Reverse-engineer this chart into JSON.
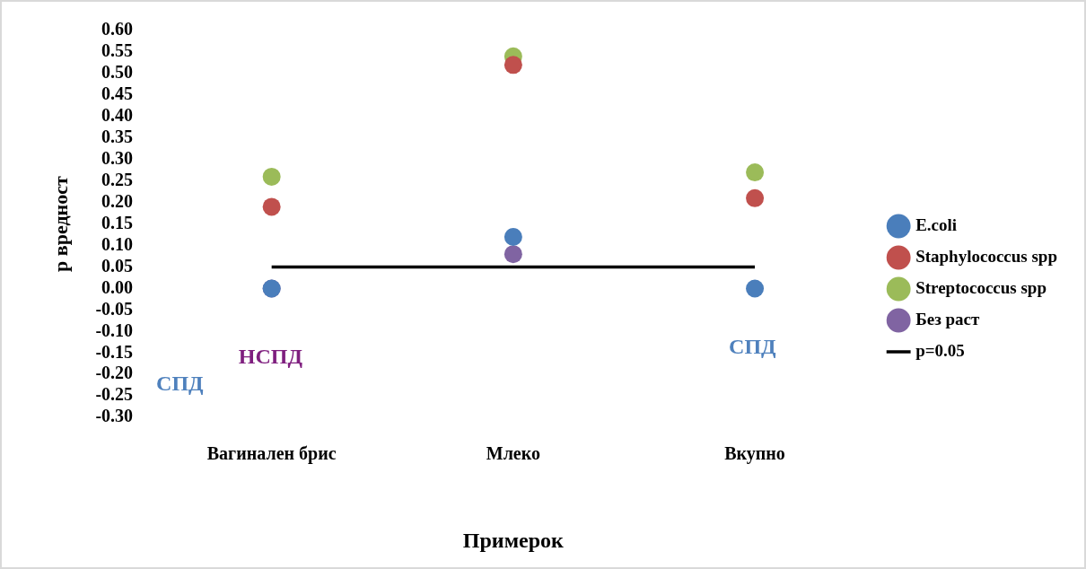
{
  "chart_data": {
    "type": "scatter",
    "xlabel": "Примерок",
    "ylabel": "p вредност",
    "categories": [
      "Вагинален брис",
      "Млеко",
      "Вкупно"
    ],
    "series": [
      {
        "name": "E.coli",
        "color": "#4a7ebb",
        "values": [
          0,
          0.12,
          0
        ]
      },
      {
        "name": "Staphylococcus spp",
        "color": "#c0504d",
        "values": [
          0.19,
          0.52,
          0.21
        ]
      },
      {
        "name": "Streptococcus spp",
        "color": "#9bbb59",
        "values": [
          0.26,
          0.54,
          0.27
        ]
      },
      {
        "name": "Без раст",
        "color": "#8064a2",
        "values": [
          0,
          0.08,
          null
        ]
      }
    ],
    "ref_lines": [
      {
        "axis": "y",
        "value": 0.05,
        "label": "p=0.05",
        "color": "#000000"
      }
    ],
    "annotations": [
      "СПД",
      "НСПД",
      "СПД"
    ],
    "ylim": [
      -0.3,
      0.6
    ],
    "yticks": [
      {
        "value": -0.3,
        "label": "-0.30"
      },
      {
        "value": -0.25,
        "label": "-0.25"
      },
      {
        "value": -0.2,
        "label": "-0.20"
      },
      {
        "value": -0.15,
        "label": "-0.15"
      },
      {
        "value": -0.1,
        "label": "-0.10"
      },
      {
        "value": -0.05,
        "label": "-0.05"
      },
      {
        "value": 0,
        "label": "0.00"
      },
      {
        "value": 0.05,
        "label": "0.05"
      },
      {
        "value": 0.1,
        "label": "0.10"
      },
      {
        "value": 0.15,
        "label": "0.15"
      },
      {
        "value": 0.2,
        "label": "0.20"
      },
      {
        "value": 0.25,
        "label": "0.25"
      },
      {
        "value": 0.3,
        "label": "0.30"
      },
      {
        "value": 0.35,
        "label": "0.35"
      },
      {
        "value": 0.4,
        "label": "0.40"
      },
      {
        "value": 0.45,
        "label": "0.45"
      },
      {
        "value": 0.5,
        "label": "0.50"
      },
      {
        "value": 0.55,
        "label": "0.55"
      },
      {
        "value": 0.6,
        "label": "0.60"
      }
    ],
    "grid": false,
    "legend": "right",
    "marker": "circle"
  }
}
